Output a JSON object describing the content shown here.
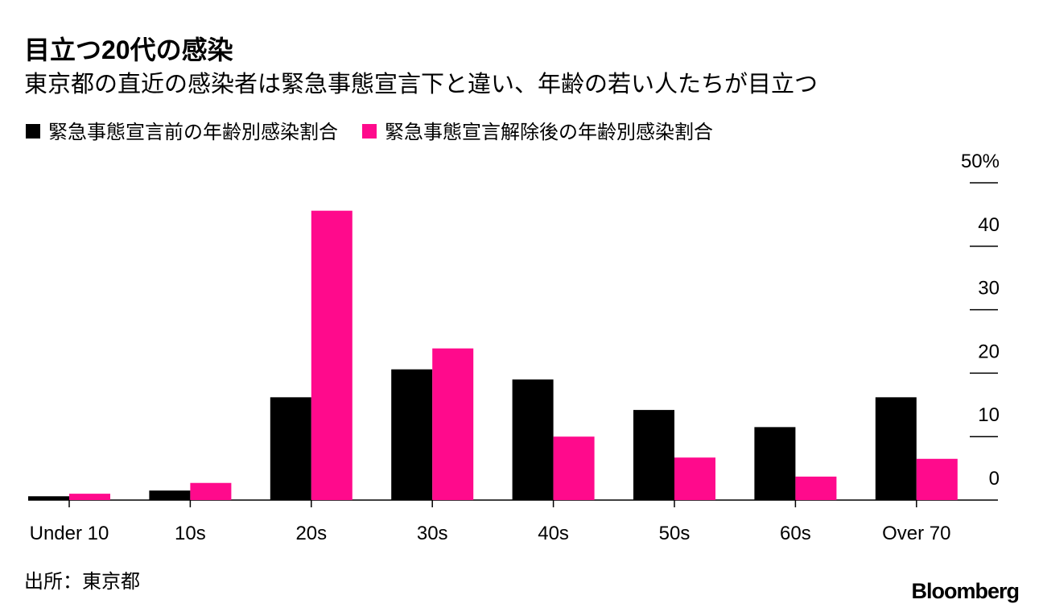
{
  "chart_data": {
    "type": "bar",
    "title": "目立つ20代の感染",
    "subtitle": "東京都の直近の感染者は緊急事態宣言下と違い、年齢の若い人たちが目立つ",
    "categories": [
      "Under 10",
      "10s",
      "20s",
      "30s",
      "40s",
      "50s",
      "60s",
      "Over 70"
    ],
    "series": [
      {
        "name": "緊急事態宣言前の年齢別感染割合",
        "color": "#000000",
        "values": [
          0.6,
          1.5,
          16.2,
          20.6,
          19.0,
          14.2,
          11.5,
          16.2
        ]
      },
      {
        "name": "緊急事態宣言解除後の年齢別感染割合",
        "color": "#ff0a8c",
        "values": [
          1.0,
          2.7,
          45.6,
          23.9,
          10.0,
          6.7,
          3.7,
          6.5
        ]
      }
    ],
    "ylim": [
      0,
      50
    ],
    "yticks": [
      0,
      10,
      20,
      30,
      40,
      {
        "value": 50,
        "label": "50%"
      }
    ],
    "source": "出所：東京都",
    "brand": "Bloomberg"
  }
}
